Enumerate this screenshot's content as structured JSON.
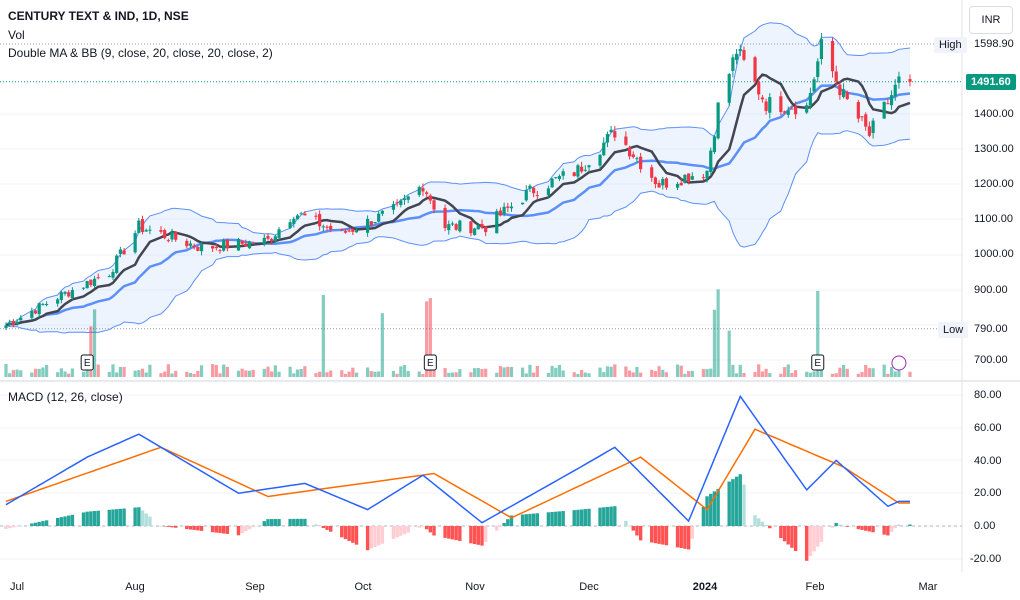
{
  "header": {
    "symbol_line": "CENTURY TEXT & IND, 1D, NSE",
    "volume_label": "Vol",
    "indicator_label": "Double MA & BB (9, close, 20, close, 20, close, 2)",
    "macd_label": "MACD (12, 26, close)",
    "currency": "INR"
  },
  "colors": {
    "up": "#089981",
    "down": "#f23645",
    "ma_fast": "#434651",
    "ma_slow": "#5b8ff9",
    "bb_band": "#5b8ff9",
    "macd_line": "#2962ff",
    "signal_line": "#ff6d00"
  },
  "price_axis": {
    "ticks": [
      "1400.00",
      "1300.00",
      "1200.00",
      "1100.00",
      "1000.00",
      "900.00",
      "700.00"
    ],
    "high_label": "High",
    "high_value": "1598.90",
    "low_label": "Low",
    "low_value": "790.00",
    "last_value": "1491.60"
  },
  "macd_axis": {
    "ticks": [
      "80.00",
      "60.00",
      "40.00",
      "20.00",
      "0.00",
      "-20.00"
    ]
  },
  "time_axis": [
    {
      "label": "Jul",
      "bold": false
    },
    {
      "label": "Aug",
      "bold": false
    },
    {
      "label": "Sep",
      "bold": false
    },
    {
      "label": "Oct",
      "bold": false
    },
    {
      "label": "Nov",
      "bold": false
    },
    {
      "label": "Dec",
      "bold": false
    },
    {
      "label": "2024",
      "bold": true
    },
    {
      "label": "Feb",
      "bold": false
    },
    {
      "label": "Mar",
      "bold": false
    }
  ],
  "earnings_markers": [
    "E",
    "E",
    "E",
    "E"
  ],
  "chart_data": [
    {
      "type": "candlestick",
      "title": "CENTURY TEXT & IND, 1D, NSE",
      "ylim": [
        650,
        1650
      ],
      "x_range": [
        "2023-06-26",
        "2024-02-26"
      ],
      "high": 1598.9,
      "low": 790.0,
      "last": 1491.6,
      "key_closes": [
        {
          "date": "2023-06-26",
          "close": 800
        },
        {
          "date": "2023-07-10",
          "close": 880
        },
        {
          "date": "2023-07-24",
          "close": 950
        },
        {
          "date": "2023-08-01",
          "close": 1080
        },
        {
          "date": "2023-08-18",
          "close": 1020
        },
        {
          "date": "2023-09-05",
          "close": 1040
        },
        {
          "date": "2023-09-12",
          "close": 1120
        },
        {
          "date": "2023-09-25",
          "close": 1060
        },
        {
          "date": "2023-10-10",
          "close": 1130
        },
        {
          "date": "2023-10-17",
          "close": 1200
        },
        {
          "date": "2023-10-23",
          "close": 1080
        },
        {
          "date": "2023-11-03",
          "close": 1080
        },
        {
          "date": "2023-11-15",
          "close": 1180
        },
        {
          "date": "2023-11-28",
          "close": 1240
        },
        {
          "date": "2023-12-08",
          "close": 1350
        },
        {
          "date": "2023-12-20",
          "close": 1200
        },
        {
          "date": "2024-01-02",
          "close": 1240
        },
        {
          "date": "2024-01-05",
          "close": 1420
        },
        {
          "date": "2024-01-10",
          "close": 1580
        },
        {
          "date": "2024-01-18",
          "close": 1430
        },
        {
          "date": "2024-01-29",
          "close": 1420
        },
        {
          "date": "2024-02-02",
          "close": 1590
        },
        {
          "date": "2024-02-08",
          "close": 1450
        },
        {
          "date": "2024-02-15",
          "close": 1340
        },
        {
          "date": "2024-02-23",
          "close": 1491.6
        }
      ],
      "overlays": [
        "MA 9",
        "MA 20",
        "Bollinger Bands 20, 2"
      ]
    },
    {
      "type": "bar",
      "title": "Vol",
      "notes": "volume bars colored by candle direction; spikes late Jul, mid Oct, early Jan, early Feb"
    },
    {
      "type": "line",
      "title": "MACD (12, 26, close)",
      "ylim": [
        -25,
        85
      ],
      "series": [
        {
          "name": "MACD",
          "points": [
            {
              "date": "2023-06-26",
              "value": 13
            },
            {
              "date": "2023-07-18",
              "value": 42
            },
            {
              "date": "2023-08-01",
              "value": 56
            },
            {
              "date": "2023-08-28",
              "value": 20
            },
            {
              "date": "2023-09-15",
              "value": 26
            },
            {
              "date": "2023-10-02",
              "value": 10
            },
            {
              "date": "2023-10-17",
              "value": 31
            },
            {
              "date": "2023-11-02",
              "value": 2
            },
            {
              "date": "2023-11-28",
              "value": 35
            },
            {
              "date": "2023-12-08",
              "value": 48
            },
            {
              "date": "2023-12-28",
              "value": 3
            },
            {
              "date": "2024-01-11",
              "value": 79
            },
            {
              "date": "2024-01-29",
              "value": 22
            },
            {
              "date": "2024-02-06",
              "value": 40
            },
            {
              "date": "2024-02-20",
              "value": 12
            },
            {
              "date": "2024-02-23",
              "value": 15
            }
          ]
        },
        {
          "name": "Signal",
          "points": [
            {
              "date": "2023-06-26",
              "value": 15
            },
            {
              "date": "2023-08-07",
              "value": 48
            },
            {
              "date": "2023-09-05",
              "value": 18
            },
            {
              "date": "2023-10-20",
              "value": 32
            },
            {
              "date": "2023-11-10",
              "value": 5
            },
            {
              "date": "2023-12-15",
              "value": 42
            },
            {
              "date": "2024-01-02",
              "value": 10
            },
            {
              "date": "2024-01-15",
              "value": 59
            },
            {
              "date": "2024-02-08",
              "value": 36
            },
            {
              "date": "2024-02-23",
              "value": 14
            }
          ]
        }
      ],
      "histogram_range": [
        -18,
        36
      ]
    }
  ]
}
